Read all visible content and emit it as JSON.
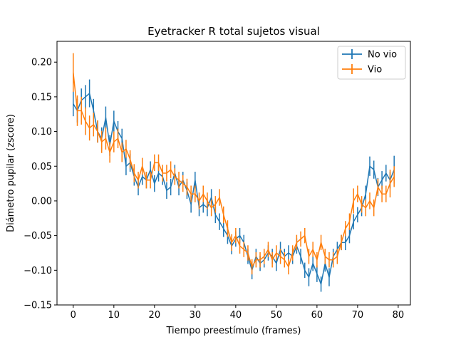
{
  "chart_data": {
    "type": "line",
    "title": "Eyetracker R total sujetos visual",
    "xlabel": "Tiempo preestímulo (frames)",
    "ylabel": "Diámetro pupilar (zscore)",
    "xlim": [
      -4,
      83
    ],
    "ylim": [
      -0.15,
      0.23
    ],
    "xticks": [
      0,
      10,
      20,
      30,
      40,
      50,
      60,
      70,
      80
    ],
    "yticks": [
      -0.15,
      -0.1,
      -0.05,
      0.0,
      0.05,
      0.1,
      0.15,
      0.2
    ],
    "ytick_labels": [
      "−0.15",
      "−0.10",
      "−0.05",
      "0.00",
      "0.05",
      "0.10",
      "0.15",
      "0.20"
    ],
    "legend_position": "upper right",
    "error_bars": true,
    "series": [
      {
        "name": "No vio",
        "color": "#1f77b4",
        "x": [
          0,
          1,
          2,
          3,
          4,
          5,
          6,
          7,
          8,
          9,
          10,
          11,
          12,
          13,
          14,
          15,
          16,
          17,
          18,
          19,
          20,
          21,
          22,
          23,
          24,
          25,
          26,
          27,
          28,
          29,
          30,
          31,
          32,
          33,
          34,
          35,
          36,
          37,
          38,
          39,
          40,
          41,
          42,
          43,
          44,
          45,
          46,
          47,
          48,
          49,
          50,
          51,
          52,
          53,
          54,
          55,
          56,
          57,
          58,
          59,
          60,
          61,
          62,
          63,
          64,
          65,
          66,
          67,
          68,
          69,
          70,
          71,
          72,
          73,
          74,
          75,
          76,
          77,
          78,
          79
        ],
        "y": [
          0.14,
          0.13,
          0.145,
          0.15,
          0.155,
          0.13,
          0.1,
          0.09,
          0.12,
          0.08,
          0.115,
          0.1,
          0.09,
          0.05,
          0.055,
          0.035,
          0.02,
          0.035,
          0.03,
          0.045,
          0.025,
          0.04,
          0.035,
          0.015,
          0.02,
          0.04,
          0.02,
          0.03,
          0.015,
          -0.005,
          0.03,
          -0.01,
          -0.005,
          -0.01,
          0.005,
          -0.02,
          -0.03,
          -0.04,
          -0.05,
          -0.065,
          -0.055,
          -0.05,
          -0.06,
          -0.08,
          -0.1,
          -0.08,
          -0.09,
          -0.085,
          -0.075,
          -0.08,
          -0.09,
          -0.07,
          -0.08,
          -0.075,
          -0.08,
          -0.065,
          -0.08,
          -0.1,
          -0.11,
          -0.09,
          -0.105,
          -0.12,
          -0.09,
          -0.11,
          -0.08,
          -0.07,
          -0.06,
          -0.06,
          -0.05,
          -0.03,
          -0.02,
          -0.01,
          0.01,
          0.05,
          0.045,
          0.02,
          0.03,
          0.04,
          0.03,
          0.045
        ],
        "err": [
          0.018,
          0.017,
          0.017,
          0.017,
          0.02,
          0.017,
          0.016,
          0.016,
          0.016,
          0.015,
          0.015,
          0.015,
          0.014,
          0.013,
          0.013,
          0.013,
          0.012,
          0.012,
          0.012,
          0.012,
          0.012,
          0.012,
          0.012,
          0.012,
          0.012,
          0.012,
          0.012,
          0.012,
          0.012,
          0.012,
          0.012,
          0.012,
          0.012,
          0.012,
          0.012,
          0.012,
          0.012,
          0.012,
          0.012,
          0.012,
          0.011,
          0.011,
          0.011,
          0.011,
          0.013,
          0.011,
          0.011,
          0.011,
          0.011,
          0.011,
          0.011,
          0.011,
          0.011,
          0.011,
          0.011,
          0.011,
          0.011,
          0.011,
          0.013,
          0.011,
          0.012,
          0.011,
          0.012,
          0.013,
          0.011,
          0.011,
          0.011,
          0.011,
          0.011,
          0.011,
          0.011,
          0.012,
          0.012,
          0.014,
          0.013,
          0.013,
          0.013,
          0.012,
          0.012,
          0.02
        ]
      },
      {
        "name": "Vio",
        "color": "#ff7f0e",
        "x": [
          0,
          1,
          2,
          3,
          4,
          5,
          6,
          7,
          8,
          9,
          10,
          11,
          12,
          13,
          14,
          15,
          16,
          17,
          18,
          19,
          20,
          21,
          22,
          23,
          24,
          25,
          26,
          27,
          28,
          29,
          30,
          31,
          32,
          33,
          34,
          35,
          36,
          37,
          38,
          39,
          40,
          41,
          42,
          43,
          44,
          45,
          46,
          47,
          48,
          49,
          50,
          51,
          52,
          53,
          54,
          55,
          56,
          57,
          58,
          59,
          60,
          61,
          62,
          63,
          64,
          65,
          66,
          67,
          68,
          69,
          70,
          71,
          72,
          73,
          74,
          75,
          76,
          77,
          78,
          79
        ],
        "y": [
          0.185,
          0.13,
          0.13,
          0.115,
          0.105,
          0.11,
          0.1,
          0.085,
          0.09,
          0.07,
          0.085,
          0.09,
          0.07,
          0.075,
          0.06,
          0.04,
          0.03,
          0.05,
          0.03,
          0.03,
          0.055,
          0.055,
          0.04,
          0.04,
          0.045,
          0.035,
          0.03,
          0.025,
          0.02,
          0.01,
          0.01,
          0.0,
          0.01,
          0.0,
          -0.01,
          -0.005,
          0.005,
          -0.02,
          -0.04,
          -0.06,
          -0.05,
          -0.065,
          -0.07,
          -0.075,
          -0.095,
          -0.085,
          -0.085,
          -0.08,
          -0.07,
          -0.085,
          -0.075,
          -0.08,
          -0.085,
          -0.095,
          -0.075,
          -0.06,
          -0.055,
          -0.05,
          -0.08,
          -0.07,
          -0.085,
          -0.06,
          -0.08,
          -0.085,
          -0.085,
          -0.08,
          -0.06,
          -0.04,
          -0.03,
          0.0,
          0.01,
          -0.005,
          -0.01,
          0.0,
          -0.01,
          0.02,
          0.01,
          0.01,
          0.025,
          0.035
        ],
        "err": [
          0.028,
          0.022,
          0.02,
          0.02,
          0.018,
          0.017,
          0.016,
          0.016,
          0.016,
          0.015,
          0.015,
          0.014,
          0.014,
          0.013,
          0.013,
          0.013,
          0.012,
          0.012,
          0.012,
          0.012,
          0.012,
          0.012,
          0.012,
          0.012,
          0.012,
          0.012,
          0.012,
          0.012,
          0.012,
          0.012,
          0.012,
          0.012,
          0.012,
          0.012,
          0.012,
          0.012,
          0.012,
          0.012,
          0.012,
          0.012,
          0.011,
          0.011,
          0.011,
          0.011,
          0.011,
          0.011,
          0.011,
          0.011,
          0.011,
          0.011,
          0.011,
          0.011,
          0.011,
          0.011,
          0.011,
          0.011,
          0.011,
          0.011,
          0.011,
          0.011,
          0.011,
          0.011,
          0.011,
          0.011,
          0.011,
          0.011,
          0.011,
          0.011,
          0.012,
          0.018,
          0.012,
          0.012,
          0.012,
          0.012,
          0.012,
          0.012,
          0.012,
          0.012,
          0.02,
          0.015
        ]
      }
    ]
  }
}
